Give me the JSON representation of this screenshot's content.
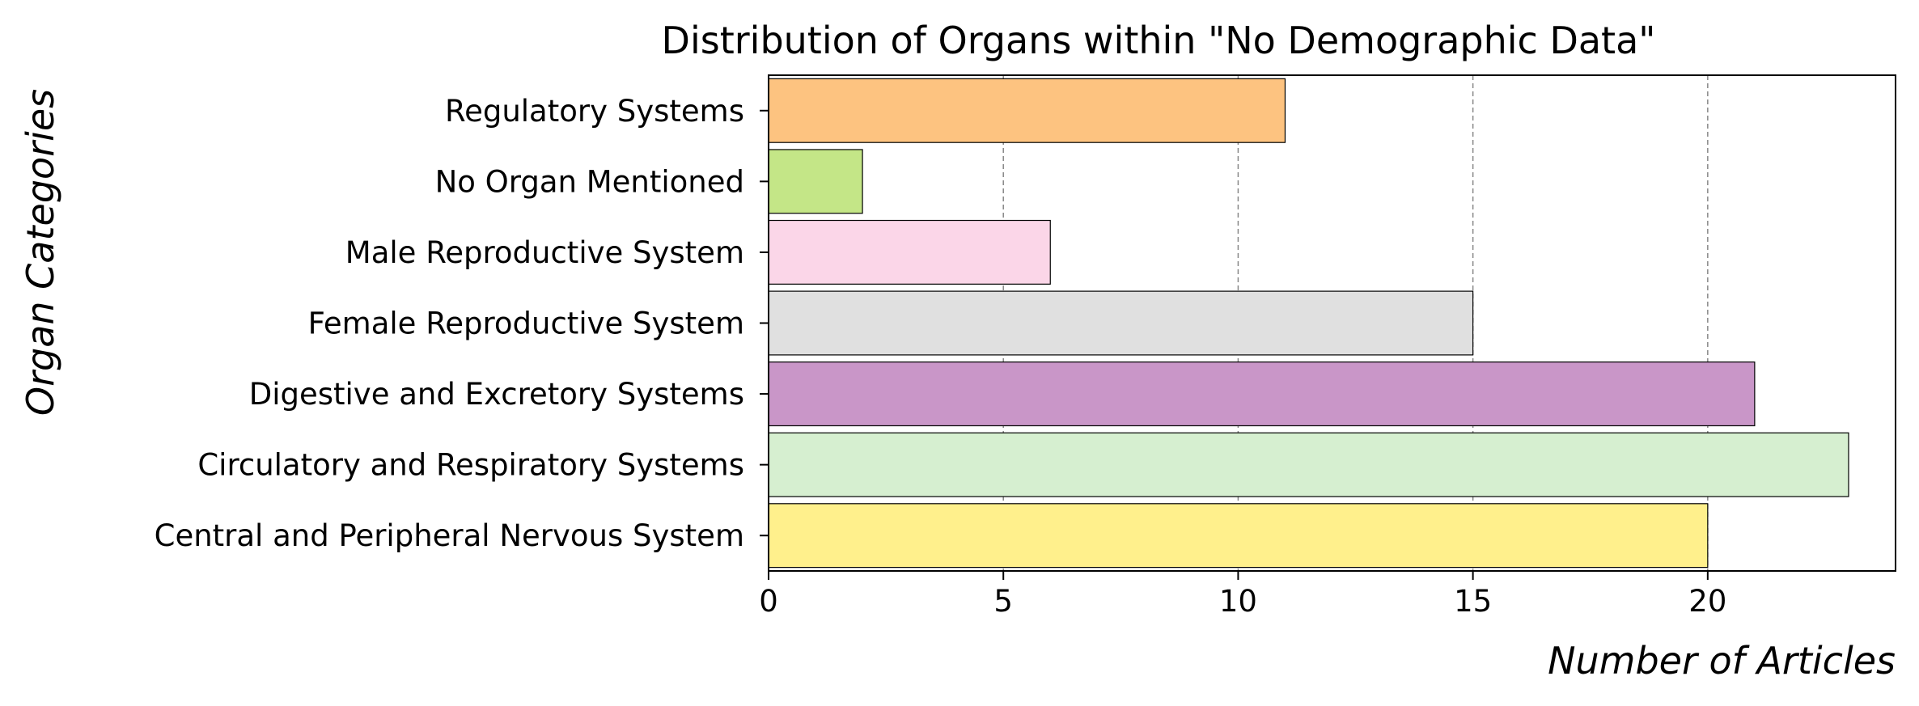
{
  "chart_data": {
    "type": "bar",
    "orientation": "horizontal",
    "title": "Distribution of Organs within \"No Demographic Data\"",
    "xlabel": "Number of Articles",
    "ylabel": "Organ Categories",
    "categories": [
      "Central and Peripheral Nervous System",
      "Circulatory and Respiratory Systems",
      "Digestive and Excretory Systems",
      "Female Reproductive System",
      "Male Reproductive System",
      "No Organ Mentioned",
      "Regulatory Systems"
    ],
    "values": [
      20,
      23,
      21,
      15,
      6,
      2,
      11
    ],
    "colors": [
      "#fff08c",
      "#d6efd0",
      "#c996c8",
      "#e0e0e0",
      "#fbd6e8",
      "#c4e687",
      "#fdc380"
    ],
    "xlim": [
      0,
      24
    ],
    "xticks": [
      0,
      5,
      10,
      15,
      20
    ],
    "grid": "x-dashed",
    "legend": "none"
  }
}
